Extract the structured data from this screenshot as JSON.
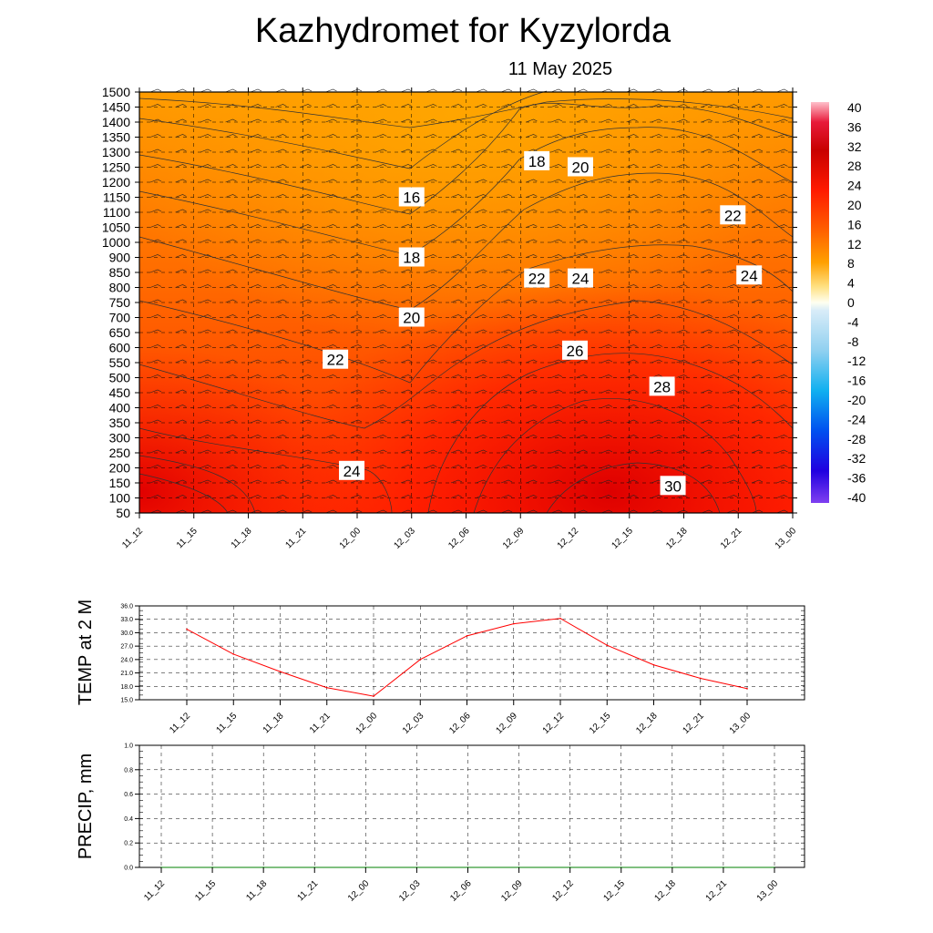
{
  "header": {
    "title": "Kazhydromet  for Kyzylorda",
    "date": "11 May 2025"
  },
  "chart_data": [
    {
      "type": "heatmap",
      "title": "Kazhydromet  for Kyzylorda",
      "subtitle": "11 May 2025",
      "x": [
        "11_12",
        "11_15",
        "11_18",
        "11_21",
        "12_00",
        "12_03",
        "12_06",
        "12_09",
        "12_12",
        "12_15",
        "12_18",
        "12_21",
        "13_00"
      ],
      "y": [
        1500,
        1450,
        1400,
        1350,
        1300,
        1250,
        1200,
        1150,
        1100,
        1050,
        1000,
        900,
        850,
        800,
        750,
        700,
        650,
        600,
        550,
        500,
        450,
        400,
        350,
        300,
        250,
        200,
        150,
        100,
        50
      ],
      "colorbar": {
        "labels": [
          "40",
          "36",
          "32",
          "28",
          "24",
          "20",
          "16",
          "12",
          "8",
          "4",
          "0",
          "-4",
          "-8",
          "-12",
          "-16",
          "-20",
          "-24",
          "-28",
          "-32",
          "-36",
          "-40"
        ],
        "range": [
          -40,
          40
        ]
      },
      "grid": true,
      "contour_labels": [
        {
          "text": "16",
          "x": 5.0,
          "level": 1150
        },
        {
          "text": "18",
          "x": 5.0,
          "level": 900
        },
        {
          "text": "20",
          "x": 5.0,
          "level": 700
        },
        {
          "text": "22",
          "x": 3.6,
          "level": 560
        },
        {
          "text": "24",
          "x": 3.9,
          "level": 190
        },
        {
          "text": "18",
          "x": 7.3,
          "level": 1270
        },
        {
          "text": "20",
          "x": 8.1,
          "level": 1250
        },
        {
          "text": "22",
          "x": 7.3,
          "level": 830
        },
        {
          "text": "24",
          "x": 8.1,
          "level": 830
        },
        {
          "text": "26",
          "x": 8.0,
          "level": 590
        },
        {
          "text": "28",
          "x": 9.6,
          "level": 470
        },
        {
          "text": "30",
          "x": 9.8,
          "level": 140
        },
        {
          "text": "22",
          "x": 10.9,
          "level": 1090
        },
        {
          "text": "24",
          "x": 11.2,
          "level": 840
        }
      ]
    },
    {
      "type": "line",
      "ylabel": "TEMP at 2 M",
      "x": [
        "11_12",
        "11_15",
        "11_18",
        "11_21",
        "12_00",
        "12_03",
        "12_06",
        "12_09",
        "12_12",
        "12_15",
        "12_18",
        "12_21",
        "13_00"
      ],
      "series": [
        {
          "values": [
            30.8,
            25.2,
            21.3,
            17.7,
            15.8,
            24.0,
            29.3,
            32.0,
            33.2,
            27.2,
            22.8,
            19.8,
            17.5
          ]
        }
      ],
      "yticks": [
        "15.0",
        "18.0",
        "21.0",
        "24.0",
        "27.0",
        "30.0",
        "33.0",
        "36.0"
      ],
      "ylim": [
        15,
        36
      ],
      "grid": true,
      "color": "#ff0000"
    },
    {
      "type": "line",
      "ylabel": "PRECIP, mm",
      "x": [
        "11_12",
        "11_15",
        "11_18",
        "11_21",
        "12_00",
        "12_03",
        "12_06",
        "12_09",
        "12_12",
        "12_15",
        "12_18",
        "12_21",
        "13_00"
      ],
      "series": [
        {
          "values": [
            0,
            0,
            0,
            0,
            0,
            0,
            0,
            0,
            0,
            0,
            0,
            0,
            0
          ]
        }
      ],
      "yticks": [
        "0.0",
        "0.2",
        "0.4",
        "0.6",
        "0.8",
        "1.0"
      ],
      "ylim": [
        0,
        1
      ],
      "grid": true,
      "color": "#008000"
    }
  ]
}
